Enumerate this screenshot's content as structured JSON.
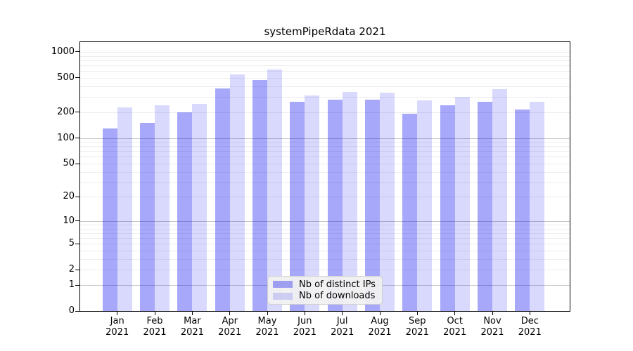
{
  "title": "systemPipeRdata 2021",
  "chart_data": {
    "type": "bar",
    "title": "systemPipeRdata 2021",
    "y_scale": "log1p",
    "grid": true,
    "categories": [
      "Jan",
      "Feb",
      "Mar",
      "Apr",
      "May",
      "Jun",
      "Jul",
      "Aug",
      "Sep",
      "Oct",
      "Nov",
      "Dec"
    ],
    "x_year": "2021",
    "series": [
      {
        "name": "Nb of distinct IPs",
        "color": "rgba(0,0,240,0.34)",
        "approx_hex": "#a8a8fa",
        "values": [
          130,
          150,
          200,
          380,
          475,
          265,
          280,
          280,
          190,
          240,
          265,
          215
        ]
      },
      {
        "name": "Nb of downloads",
        "color": "rgba(0,0,240,0.15)",
        "approx_hex": "#d9d9fd",
        "values": [
          225,
          240,
          250,
          545,
          620,
          310,
          345,
          340,
          275,
          300,
          370,
          265
        ]
      }
    ],
    "y_ticks": [
      1000,
      500,
      200,
      100,
      50,
      20,
      10,
      5,
      2,
      1,
      0
    ],
    "ylim": [
      0,
      1300
    ],
    "legend_position": "lower-center",
    "legend_labels": [
      "Nb of distinct IPs",
      "Nb of downloads"
    ]
  }
}
